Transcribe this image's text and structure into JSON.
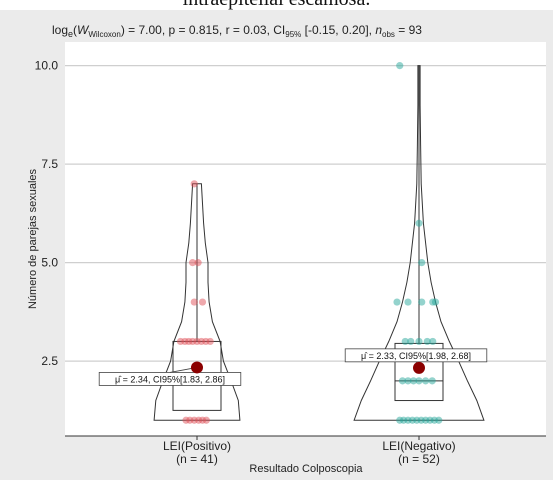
{
  "cut_title": "intraepitelial escamosa.",
  "chart_data": {
    "type": "violin-box",
    "subtitle_parts": {
      "w_prefix": "log",
      "w_sub_e": "e",
      "w_open": "(",
      "w_var": "W",
      "w_sub": "Wilcoxon",
      "w_close": ") = 7.00, ",
      "p_part": "p = 0.815, ",
      "r_part": "r = 0.03, CI",
      "ci_sub": "95%",
      "ci_range": " [-0.15, 0.20], ",
      "n_var": "n",
      "n_sub": "obs",
      "n_value": " = 93"
    },
    "xlabel": "Resultado Colposcopia",
    "ylabel": "Número de parejas sexuales",
    "ylim": [
      0.6,
      10.6
    ],
    "yticks": [
      2.5,
      5.0,
      7.5,
      10.0
    ],
    "ytick_labels": [
      "2.5",
      "5.0",
      "7.5",
      "10.0"
    ],
    "groups": [
      {
        "name": "LEI(Positivo)",
        "n_label": "(n = 41)",
        "color": "#e0525a",
        "mean": 2.34,
        "mean_label": "μ̂ = 2.34, CI95%[1.83, 2.86]",
        "box": {
          "min": 1,
          "q1": 1.25,
          "median": 2.1,
          "q3": 3.0,
          "max": 7
        },
        "violin": [
          [
            1,
            0.78
          ],
          [
            1.5,
            0.75
          ],
          [
            2,
            0.62
          ],
          [
            2.5,
            0.48
          ],
          [
            3,
            0.42
          ],
          [
            3.5,
            0.28
          ],
          [
            4,
            0.22
          ],
          [
            4.5,
            0.2
          ],
          [
            5,
            0.2
          ],
          [
            5.5,
            0.15
          ],
          [
            6,
            0.12
          ],
          [
            6.5,
            0.1
          ],
          [
            7,
            0.08
          ]
        ],
        "points": [
          [
            -0.2,
            1
          ],
          [
            -0.13,
            1
          ],
          [
            -0.05,
            1
          ],
          [
            0.03,
            1
          ],
          [
            0.1,
            1
          ],
          [
            0.17,
            1
          ],
          [
            -0.1,
            2
          ],
          [
            0.05,
            2
          ],
          [
            0.2,
            2
          ],
          [
            -0.3,
            3
          ],
          [
            -0.22,
            3
          ],
          [
            -0.15,
            3
          ],
          [
            -0.08,
            3
          ],
          [
            0.0,
            3
          ],
          [
            0.08,
            3
          ],
          [
            0.16,
            3
          ],
          [
            0.24,
            3
          ],
          [
            -0.05,
            4
          ],
          [
            0.1,
            4
          ],
          [
            -0.08,
            5
          ],
          [
            0.02,
            5
          ],
          [
            -0.05,
            7
          ]
        ]
      },
      {
        "name": "LEI(Negativo)",
        "n_label": "(n = 52)",
        "color": "#2aa79b",
        "mean": 2.33,
        "mean_label": "μ̂ = 2.33, CI95%[1.98, 2.68]",
        "box": {
          "min": 1,
          "q1": 1.5,
          "median": 2.0,
          "q3": 2.95,
          "max": 10
        },
        "violin": [
          [
            1,
            1.18
          ],
          [
            1.5,
            1.05
          ],
          [
            2,
            0.88
          ],
          [
            2.5,
            0.72
          ],
          [
            3,
            0.55
          ],
          [
            3.5,
            0.4
          ],
          [
            4,
            0.3
          ],
          [
            4.5,
            0.22
          ],
          [
            5,
            0.16
          ],
          [
            6,
            0.08
          ],
          [
            7,
            0.04
          ],
          [
            8,
            0.03
          ],
          [
            9,
            0.02
          ],
          [
            10,
            0.02
          ]
        ],
        "points": [
          [
            -0.35,
            1
          ],
          [
            -0.28,
            1
          ],
          [
            -0.2,
            1
          ],
          [
            -0.12,
            1
          ],
          [
            -0.04,
            1
          ],
          [
            0.04,
            1
          ],
          [
            0.12,
            1
          ],
          [
            0.2,
            1
          ],
          [
            0.28,
            1
          ],
          [
            0.36,
            1
          ],
          [
            -0.3,
            2
          ],
          [
            -0.2,
            2
          ],
          [
            -0.1,
            2
          ],
          [
            0.0,
            2
          ],
          [
            0.12,
            2
          ],
          [
            0.24,
            2
          ],
          [
            -0.25,
            3
          ],
          [
            -0.15,
            3
          ],
          [
            0.0,
            3
          ],
          [
            0.15,
            3
          ],
          [
            0.25,
            3
          ],
          [
            -0.4,
            4
          ],
          [
            -0.2,
            4
          ],
          [
            0.05,
            4
          ],
          [
            0.25,
            4
          ],
          [
            0.3,
            4
          ],
          [
            0.05,
            5
          ],
          [
            0.0,
            6
          ],
          [
            -0.35,
            10
          ]
        ]
      }
    ]
  }
}
